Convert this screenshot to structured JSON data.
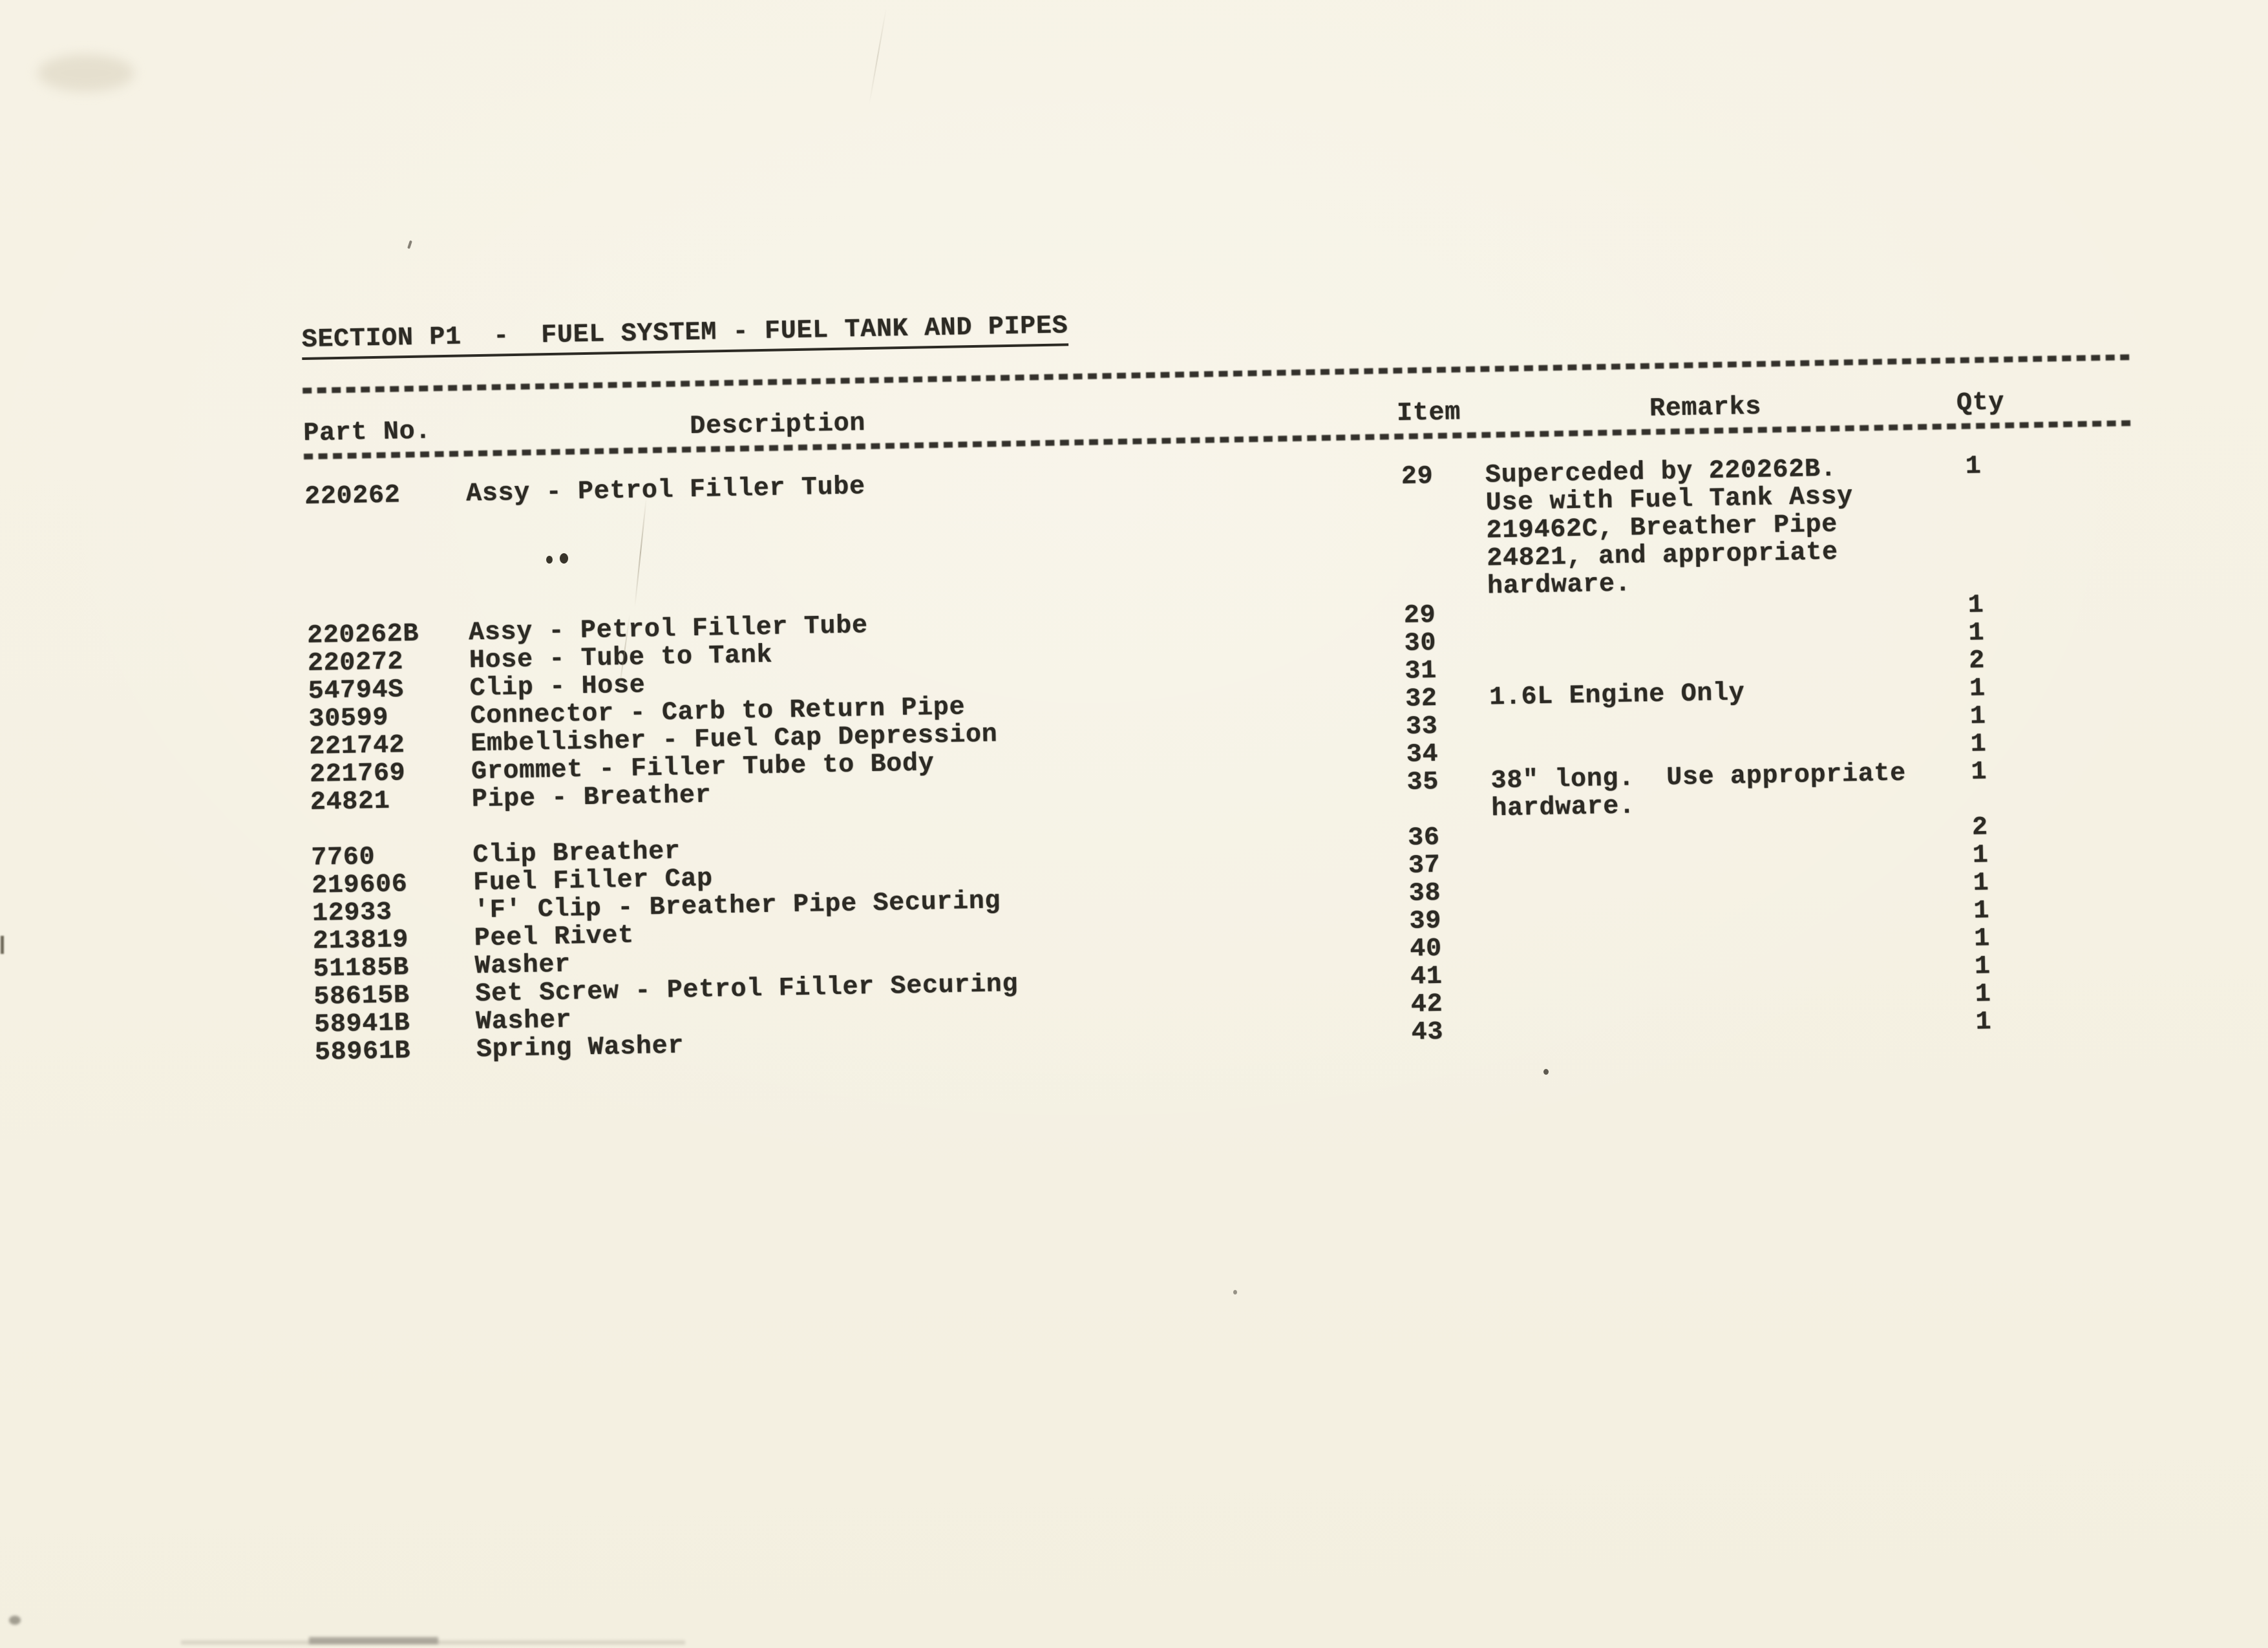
{
  "page": {
    "title": "SECTION P1  -  FUEL SYSTEM - FUEL TANK AND PIPES"
  },
  "colors": {
    "paper": "#f5f1e3",
    "ink": "#2c2a24"
  },
  "table": {
    "headers": {
      "part_no": "Part No.",
      "description": "Description",
      "item": "Item",
      "remarks": "Remarks",
      "qty": "Qty"
    },
    "rows": [
      {
        "part_no": "220262",
        "description": "Assy - Petrol Filler Tube",
        "item": "29",
        "qty": "1",
        "remarks": [
          "Superceded by 220262B.",
          "Use with Fuel Tank Assy",
          "219462C, Breather Pipe",
          "24821, and appropriate",
          "hardware."
        ]
      },
      {
        "part_no": "220262B",
        "description": "Assy - Petrol Filler Tube",
        "item": "29",
        "qty": "1",
        "remarks": []
      },
      {
        "part_no": "220272",
        "description": "Hose - Tube to Tank",
        "item": "30",
        "qty": "1",
        "remarks": []
      },
      {
        "part_no": "54794S",
        "description": "Clip - Hose",
        "item": "31",
        "qty": "2",
        "remarks": []
      },
      {
        "part_no": "30599",
        "description": "Connector - Carb to Return Pipe",
        "item": "32",
        "qty": "1",
        "remarks": [
          "1.6L Engine Only"
        ]
      },
      {
        "part_no": "221742",
        "description": "Embellisher - Fuel Cap Depression",
        "item": "33",
        "qty": "1",
        "remarks": []
      },
      {
        "part_no": "221769",
        "description": "Grommet - Filler Tube to Body",
        "item": "34",
        "qty": "1",
        "remarks": []
      },
      {
        "part_no": "24821",
        "description": "Pipe - Breather",
        "item": "35",
        "qty": "1",
        "remarks": [
          "38\" long.  Use appropriate",
          "hardware."
        ]
      },
      {
        "part_no": "7760",
        "description": "Clip Breather",
        "item": "36",
        "qty": "2",
        "remarks": []
      },
      {
        "part_no": "219606",
        "description": "Fuel Filler Cap",
        "item": "37",
        "qty": "1",
        "remarks": []
      },
      {
        "part_no": "12933",
        "description": "'F' Clip - Breather Pipe Securing",
        "item": "38",
        "qty": "1",
        "remarks": []
      },
      {
        "part_no": "213819",
        "description": "Peel Rivet",
        "item": "39",
        "qty": "1",
        "remarks": []
      },
      {
        "part_no": "51185B",
        "description": "Washer",
        "item": "40",
        "qty": "1",
        "remarks": []
      },
      {
        "part_no": "58615B",
        "description": "Set Screw - Petrol Filler Securing",
        "item": "41",
        "qty": "1",
        "remarks": []
      },
      {
        "part_no": "58941B",
        "description": "Washer",
        "item": "42",
        "qty": "1",
        "remarks": []
      },
      {
        "part_no": "58961B",
        "description": "Spring Washer",
        "item": "43",
        "qty": "1",
        "remarks": []
      }
    ]
  }
}
